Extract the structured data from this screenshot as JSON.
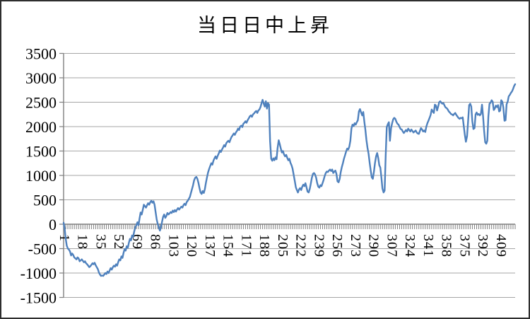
{
  "title": "当日日中上昇",
  "chart_data": {
    "type": "line",
    "title": "当日日中上昇",
    "xlabel": "",
    "ylabel": "",
    "legend": false,
    "grid": true,
    "ylim": [
      -1500,
      3500
    ],
    "y_tick_step": 500,
    "y_tick_labels": [
      "3500",
      "3000",
      "2500",
      "2000",
      "1500",
      "1000",
      "500",
      "0",
      "-500",
      "-1000",
      "-1500"
    ],
    "x_tick_labels": [
      "1",
      "18",
      "35",
      "52",
      "69",
      "86",
      "103",
      "120",
      "137",
      "154",
      "171",
      "188",
      "205",
      "222",
      "239",
      "256",
      "273",
      "290",
      "307",
      "324",
      "341",
      "358",
      "375",
      "392",
      "409"
    ],
    "x_tick_start": 1,
    "x_tick_step": 17,
    "x_range": [
      1,
      423
    ],
    "x_label_rotation_deg": 90,
    "line_color": "#4F81BD",
    "grid_color": "#A6A6A6",
    "axis_color": "#7F7F7F",
    "border_color": "#2E2E2E",
    "background": "#FFFFFF",
    "points": [
      [
        1,
        30
      ],
      [
        2,
        -90
      ],
      [
        3,
        -300
      ],
      [
        4,
        -440
      ],
      [
        5,
        -500
      ],
      [
        6,
        -520
      ],
      [
        7,
        -560
      ],
      [
        8,
        -640
      ],
      [
        9,
        -600
      ],
      [
        10,
        -630
      ],
      [
        11,
        -680
      ],
      [
        12,
        -700
      ],
      [
        13,
        -720
      ],
      [
        14,
        -680
      ],
      [
        15,
        -700
      ],
      [
        16,
        -760
      ],
      [
        17,
        -740
      ],
      [
        18,
        -720
      ],
      [
        19,
        -750
      ],
      [
        20,
        -780
      ],
      [
        21,
        -760
      ],
      [
        22,
        -800
      ],
      [
        23,
        -820
      ],
      [
        24,
        -850
      ],
      [
        25,
        -880
      ],
      [
        26,
        -860
      ],
      [
        27,
        -830
      ],
      [
        28,
        -800
      ],
      [
        29,
        -820
      ],
      [
        30,
        -790
      ],
      [
        31,
        -840
      ],
      [
        32,
        -880
      ],
      [
        33,
        -920
      ],
      [
        34,
        -990
      ],
      [
        35,
        -1030
      ],
      [
        36,
        -1060
      ],
      [
        37,
        -1050
      ],
      [
        38,
        -1060
      ],
      [
        39,
        -1030
      ],
      [
        40,
        -1000
      ],
      [
        41,
        -1020
      ],
      [
        42,
        -970
      ],
      [
        43,
        -1000
      ],
      [
        44,
        -950
      ],
      [
        45,
        -900
      ],
      [
        46,
        -930
      ],
      [
        47,
        -880
      ],
      [
        48,
        -850
      ],
      [
        49,
        -870
      ],
      [
        50,
        -820
      ],
      [
        51,
        -850
      ],
      [
        52,
        -780
      ],
      [
        53,
        -720
      ],
      [
        54,
        -740
      ],
      [
        55,
        -660
      ],
      [
        56,
        -690
      ],
      [
        57,
        -590
      ],
      [
        58,
        -510
      ],
      [
        59,
        -540
      ],
      [
        60,
        -450
      ],
      [
        61,
        -480
      ],
      [
        62,
        -380
      ],
      [
        63,
        -300
      ],
      [
        64,
        -330
      ],
      [
        65,
        -230
      ],
      [
        66,
        -260
      ],
      [
        67,
        -150
      ],
      [
        68,
        -60
      ],
      [
        69,
        -20
      ],
      [
        70,
        40
      ],
      [
        71,
        -20
      ],
      [
        72,
        120
      ],
      [
        73,
        240
      ],
      [
        74,
        200
      ],
      [
        75,
        300
      ],
      [
        76,
        400
      ],
      [
        77,
        370
      ],
      [
        78,
        340
      ],
      [
        79,
        390
      ],
      [
        80,
        430
      ],
      [
        81,
        400
      ],
      [
        82,
        450
      ],
      [
        83,
        480
      ],
      [
        84,
        440
      ],
      [
        85,
        470
      ],
      [
        86,
        400
      ],
      [
        87,
        250
      ],
      [
        88,
        100
      ],
      [
        89,
        0
      ],
      [
        90,
        -70
      ],
      [
        91,
        -130
      ],
      [
        92,
        -60
      ],
      [
        93,
        50
      ],
      [
        94,
        150
      ],
      [
        95,
        200
      ],
      [
        96,
        130
      ],
      [
        97,
        170
      ],
      [
        98,
        230
      ],
      [
        99,
        200
      ],
      [
        100,
        220
      ],
      [
        101,
        250
      ],
      [
        102,
        230
      ],
      [
        103,
        280
      ],
      [
        104,
        250
      ],
      [
        105,
        290
      ],
      [
        106,
        260
      ],
      [
        107,
        300
      ],
      [
        108,
        330
      ],
      [
        109,
        300
      ],
      [
        110,
        330
      ],
      [
        111,
        360
      ],
      [
        112,
        340
      ],
      [
        113,
        390
      ],
      [
        114,
        420
      ],
      [
        115,
        390
      ],
      [
        116,
        450
      ],
      [
        117,
        480
      ],
      [
        118,
        520
      ],
      [
        119,
        560
      ],
      [
        120,
        640
      ],
      [
        121,
        720
      ],
      [
        122,
        800
      ],
      [
        123,
        900
      ],
      [
        124,
        950
      ],
      [
        125,
        970
      ],
      [
        126,
        930
      ],
      [
        127,
        850
      ],
      [
        128,
        740
      ],
      [
        129,
        650
      ],
      [
        130,
        620
      ],
      [
        131,
        680
      ],
      [
        132,
        640
      ],
      [
        133,
        720
      ],
      [
        134,
        850
      ],
      [
        135,
        960
      ],
      [
        136,
        1060
      ],
      [
        137,
        1130
      ],
      [
        138,
        1190
      ],
      [
        139,
        1250
      ],
      [
        140,
        1220
      ],
      [
        141,
        1300
      ],
      [
        142,
        1350
      ],
      [
        143,
        1390
      ],
      [
        144,
        1340
      ],
      [
        145,
        1400
      ],
      [
        146,
        1450
      ],
      [
        147,
        1510
      ],
      [
        148,
        1480
      ],
      [
        149,
        1530
      ],
      [
        150,
        1570
      ],
      [
        151,
        1620
      ],
      [
        152,
        1590
      ],
      [
        153,
        1660
      ],
      [
        154,
        1690
      ],
      [
        155,
        1710
      ],
      [
        156,
        1680
      ],
      [
        157,
        1740
      ],
      [
        158,
        1790
      ],
      [
        159,
        1820
      ],
      [
        160,
        1860
      ],
      [
        161,
        1830
      ],
      [
        162,
        1880
      ],
      [
        163,
        1910
      ],
      [
        164,
        1960
      ],
      [
        165,
        1930
      ],
      [
        166,
        2000
      ],
      [
        167,
        2020
      ],
      [
        168,
        1990
      ],
      [
        169,
        2060
      ],
      [
        170,
        2080
      ],
      [
        171,
        2110
      ],
      [
        172,
        2080
      ],
      [
        173,
        2130
      ],
      [
        174,
        2170
      ],
      [
        175,
        2210
      ],
      [
        176,
        2230
      ],
      [
        177,
        2200
      ],
      [
        178,
        2250
      ],
      [
        179,
        2270
      ],
      [
        180,
        2300
      ],
      [
        181,
        2320
      ],
      [
        182,
        2280
      ],
      [
        183,
        2330
      ],
      [
        184,
        2350
      ],
      [
        185,
        2400
      ],
      [
        186,
        2480
      ],
      [
        187,
        2550
      ],
      [
        188,
        2470
      ],
      [
        189,
        2410
      ],
      [
        190,
        2520
      ],
      [
        191,
        2370
      ],
      [
        192,
        2480
      ],
      [
        193,
        2450
      ],
      [
        194,
        1700
      ],
      [
        195,
        1340
      ],
      [
        196,
        1300
      ],
      [
        197,
        1350
      ],
      [
        198,
        1310
      ],
      [
        199,
        1370
      ],
      [
        200,
        1330
      ],
      [
        201,
        1560
      ],
      [
        202,
        1720
      ],
      [
        203,
        1640
      ],
      [
        204,
        1550
      ],
      [
        205,
        1470
      ],
      [
        206,
        1500
      ],
      [
        207,
        1430
      ],
      [
        208,
        1390
      ],
      [
        209,
        1420
      ],
      [
        210,
        1360
      ],
      [
        211,
        1310
      ],
      [
        212,
        1340
      ],
      [
        213,
        1260
      ],
      [
        214,
        1210
      ],
      [
        215,
        1140
      ],
      [
        216,
        1010
      ],
      [
        217,
        890
      ],
      [
        218,
        760
      ],
      [
        219,
        700
      ],
      [
        220,
        650
      ],
      [
        221,
        710
      ],
      [
        222,
        740
      ],
      [
        223,
        700
      ],
      [
        224,
        770
      ],
      [
        225,
        810
      ],
      [
        226,
        780
      ],
      [
        227,
        840
      ],
      [
        228,
        760
      ],
      [
        229,
        670
      ],
      [
        230,
        650
      ],
      [
        231,
        720
      ],
      [
        232,
        830
      ],
      [
        233,
        950
      ],
      [
        234,
        1030
      ],
      [
        235,
        1050
      ],
      [
        236,
        1020
      ],
      [
        237,
        950
      ],
      [
        238,
        840
      ],
      [
        239,
        770
      ],
      [
        240,
        750
      ],
      [
        241,
        800
      ],
      [
        242,
        780
      ],
      [
        243,
        840
      ],
      [
        244,
        910
      ],
      [
        245,
        990
      ],
      [
        246,
        1050
      ],
      [
        247,
        1080
      ],
      [
        248,
        1070
      ],
      [
        249,
        1100
      ],
      [
        250,
        1120
      ],
      [
        251,
        1090
      ],
      [
        252,
        1120
      ],
      [
        253,
        1050
      ],
      [
        254,
        1080
      ],
      [
        255,
        1100
      ],
      [
        256,
        1030
      ],
      [
        257,
        880
      ],
      [
        258,
        860
      ],
      [
        259,
        930
      ],
      [
        260,
        1070
      ],
      [
        261,
        1170
      ],
      [
        262,
        1250
      ],
      [
        263,
        1340
      ],
      [
        264,
        1410
      ],
      [
        265,
        1490
      ],
      [
        266,
        1550
      ],
      [
        267,
        1530
      ],
      [
        268,
        1590
      ],
      [
        269,
        1710
      ],
      [
        270,
        1960
      ],
      [
        271,
        2040
      ],
      [
        272,
        2010
      ],
      [
        273,
        2070
      ],
      [
        274,
        2040
      ],
      [
        275,
        2090
      ],
      [
        276,
        2130
      ],
      [
        277,
        2310
      ],
      [
        278,
        2360
      ],
      [
        279,
        2290
      ],
      [
        280,
        2230
      ],
      [
        281,
        2300
      ],
      [
        282,
        2110
      ],
      [
        283,
        1940
      ],
      [
        284,
        1730
      ],
      [
        285,
        1570
      ],
      [
        286,
        1440
      ],
      [
        287,
        1260
      ],
      [
        288,
        1100
      ],
      [
        289,
        960
      ],
      [
        290,
        930
      ],
      [
        291,
        1070
      ],
      [
        292,
        1250
      ],
      [
        293,
        1390
      ],
      [
        294,
        1460
      ],
      [
        295,
        1360
      ],
      [
        296,
        1210
      ],
      [
        297,
        1160
      ],
      [
        298,
        960
      ],
      [
        299,
        730
      ],
      [
        300,
        650
      ],
      [
        301,
        690
      ],
      [
        302,
        1410
      ],
      [
        303,
        1990
      ],
      [
        304,
        2050
      ],
      [
        305,
        2090
      ],
      [
        306,
        1710
      ],
      [
        307,
        1970
      ],
      [
        308,
        2070
      ],
      [
        309,
        2150
      ],
      [
        310,
        2180
      ],
      [
        311,
        2160
      ],
      [
        312,
        2100
      ],
      [
        313,
        2060
      ],
      [
        314,
        2040
      ],
      [
        315,
        1990
      ],
      [
        316,
        1950
      ],
      [
        317,
        1940
      ],
      [
        318,
        1900
      ],
      [
        319,
        1870
      ],
      [
        320,
        1900
      ],
      [
        321,
        1930
      ],
      [
        322,
        1900
      ],
      [
        323,
        1960
      ],
      [
        324,
        1930
      ],
      [
        325,
        1900
      ],
      [
        326,
        1940
      ],
      [
        327,
        1910
      ],
      [
        328,
        1880
      ],
      [
        329,
        1900
      ],
      [
        330,
        1920
      ],
      [
        331,
        1880
      ],
      [
        332,
        1860
      ],
      [
        333,
        1850
      ],
      [
        334,
        1910
      ],
      [
        335,
        1970
      ],
      [
        336,
        1940
      ],
      [
        337,
        1900
      ],
      [
        338,
        1920
      ],
      [
        339,
        1890
      ],
      [
        340,
        2000
      ],
      [
        341,
        2070
      ],
      [
        342,
        2120
      ],
      [
        343,
        2180
      ],
      [
        344,
        2240
      ],
      [
        345,
        2350
      ],
      [
        346,
        2310
      ],
      [
        347,
        2280
      ],
      [
        348,
        2450
      ],
      [
        349,
        2430
      ],
      [
        350,
        2330
      ],
      [
        351,
        2410
      ],
      [
        352,
        2500
      ],
      [
        353,
        2520
      ],
      [
        354,
        2490
      ],
      [
        355,
        2470
      ],
      [
        356,
        2480
      ],
      [
        357,
        2430
      ],
      [
        358,
        2390
      ],
      [
        359,
        2380
      ],
      [
        360,
        2350
      ],
      [
        361,
        2310
      ],
      [
        362,
        2290
      ],
      [
        363,
        2260
      ],
      [
        364,
        2250
      ],
      [
        365,
        2230
      ],
      [
        366,
        2260
      ],
      [
        367,
        2280
      ],
      [
        368,
        2240
      ],
      [
        369,
        2210
      ],
      [
        370,
        2180
      ],
      [
        371,
        2160
      ],
      [
        372,
        2180
      ],
      [
        373,
        2170
      ],
      [
        374,
        2190
      ],
      [
        375,
        2010
      ],
      [
        376,
        1830
      ],
      [
        377,
        1690
      ],
      [
        378,
        1800
      ],
      [
        379,
        2110
      ],
      [
        380,
        2440
      ],
      [
        381,
        2470
      ],
      [
        382,
        2410
      ],
      [
        383,
        2110
      ],
      [
        384,
        1950
      ],
      [
        385,
        1970
      ],
      [
        386,
        2250
      ],
      [
        387,
        2290
      ],
      [
        388,
        2240
      ],
      [
        389,
        2260
      ],
      [
        390,
        2230
      ],
      [
        391,
        2260
      ],
      [
        392,
        2450
      ],
      [
        393,
        2210
      ],
      [
        394,
        1910
      ],
      [
        395,
        1680
      ],
      [
        396,
        1650
      ],
      [
        397,
        1710
      ],
      [
        398,
        2210
      ],
      [
        399,
        2470
      ],
      [
        400,
        2490
      ],
      [
        401,
        2540
      ],
      [
        402,
        2510
      ],
      [
        403,
        2340
      ],
      [
        404,
        2370
      ],
      [
        405,
        2430
      ],
      [
        406,
        2400
      ],
      [
        407,
        2440
      ],
      [
        408,
        2310
      ],
      [
        409,
        2330
      ],
      [
        410,
        2540
      ],
      [
        411,
        2510
      ],
      [
        412,
        2390
      ],
      [
        413,
        2120
      ],
      [
        414,
        2130
      ],
      [
        415,
        2460
      ],
      [
        416,
        2510
      ],
      [
        417,
        2620
      ],
      [
        418,
        2650
      ],
      [
        419,
        2690
      ],
      [
        420,
        2720
      ],
      [
        421,
        2770
      ],
      [
        422,
        2830
      ],
      [
        423,
        2870
      ]
    ]
  }
}
